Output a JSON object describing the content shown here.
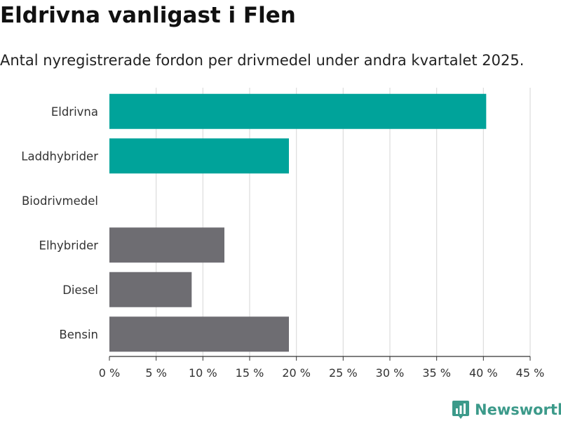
{
  "title": "Eldrivna vanligast i Flen",
  "subtitle": "Antal nyregistrerade fordon per drivmedel under andra kvartalet 2025.",
  "brand": {
    "name": "Newsworthy",
    "icon": "newsworthy-logo-icon",
    "color": "#3c9a8a"
  },
  "chart_data": {
    "type": "bar",
    "orientation": "horizontal",
    "categories": [
      "Eldrivna",
      "Laddhybrider",
      "Biodrivmedel",
      "Elhybrider",
      "Diesel",
      "Bensin"
    ],
    "values": [
      40.3,
      19.2,
      0,
      12.3,
      8.8,
      19.2
    ],
    "colors": [
      "#00a39a",
      "#00a39a",
      "#6e6d72",
      "#6e6d72",
      "#6e6d72",
      "#6e6d72"
    ],
    "xlim": [
      0,
      45
    ],
    "xticks": [
      0,
      5,
      10,
      15,
      20,
      25,
      30,
      35,
      40,
      45
    ],
    "xtick_labels": [
      "0 %",
      "5 %",
      "10 %",
      "15 %",
      "20 %",
      "25 %",
      "30 %",
      "35 %",
      "40 %",
      "45 %"
    ],
    "grid": true
  }
}
